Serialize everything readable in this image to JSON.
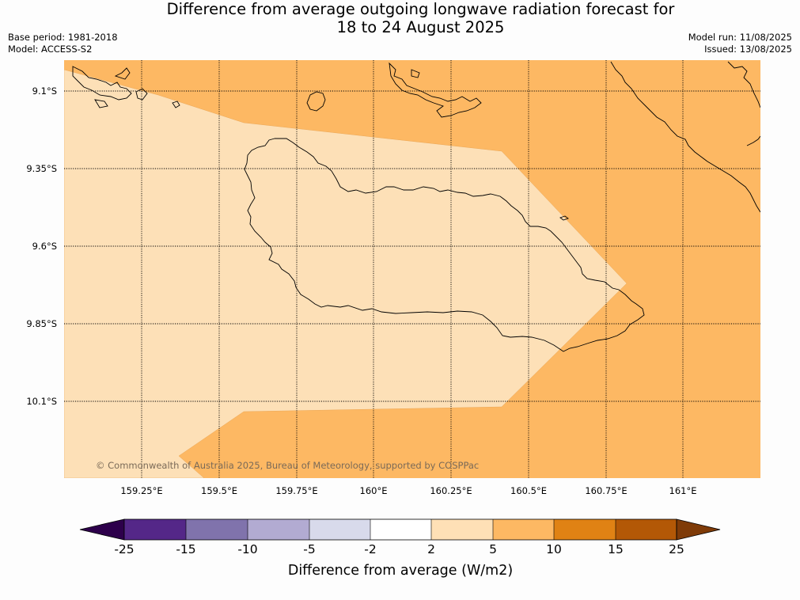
{
  "header": {
    "title_line1": "Difference from average outgoing longwave radiation forecast for",
    "title_line2": "18 to 24 August 2025",
    "base_period": "Base period: 1981-2018",
    "model": "Model: ACCESS-S2",
    "model_run": "Model run: 11/08/2025",
    "issued": "Issued: 13/08/2025"
  },
  "map": {
    "longitude_labels": [
      "159.25°E",
      "159.5°E",
      "159.75°E",
      "160°E",
      "160.25°E",
      "160.5°E",
      "160.75°E",
      "161°E"
    ],
    "latitude_labels": [
      "9.1°S",
      "9.35°S",
      "9.6°S",
      "9.85°S",
      "10.1°S"
    ],
    "copyright": "© Commonwealth of Australia 2025, Bureau of Meteorology, supported by COSPPac",
    "shading": [
      {
        "band": "2 to 5",
        "color": "#fde0b7"
      },
      {
        "band": "5 to 10",
        "color": "#fdb863"
      }
    ]
  },
  "colorbar": {
    "title": "Difference from average (W/m2)",
    "tick_labels": [
      "-25",
      "-15",
      "-10",
      "-5",
      "-2",
      "2",
      "5",
      "10",
      "15",
      "25"
    ],
    "colors": [
      "#542788",
      "#8073ac",
      "#b2abd2",
      "#d8daeb",
      "#ffffff",
      "#fee0b6",
      "#fdb863",
      "#e08214",
      "#b35806"
    ],
    "extend_min_color": "#2d004b",
    "extend_max_color": "#7f3b08"
  }
}
